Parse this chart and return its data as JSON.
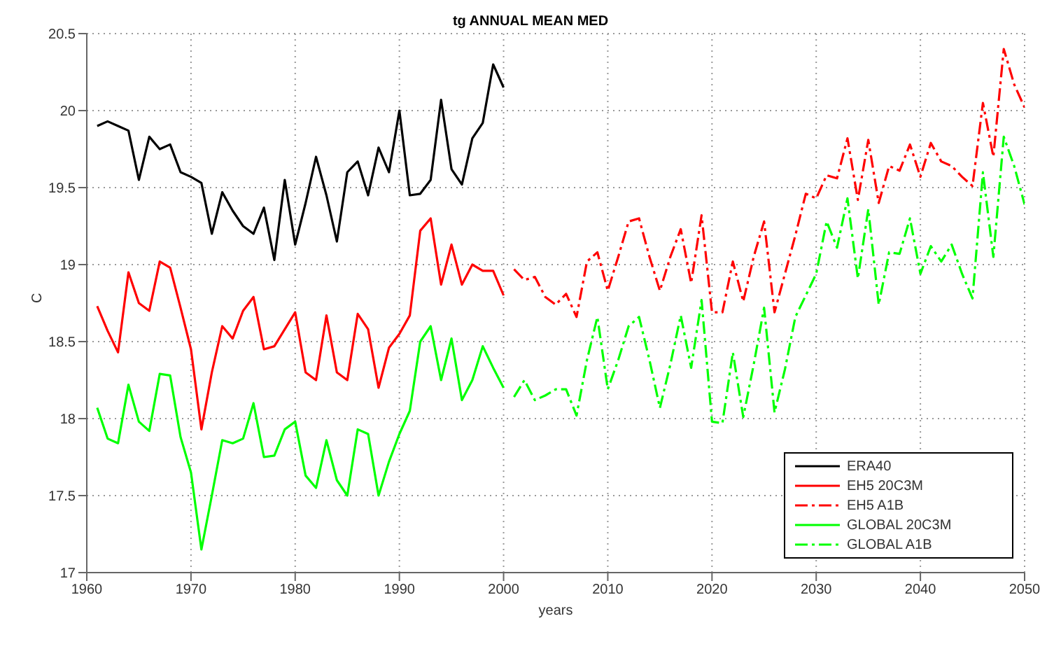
{
  "chart_data": {
    "type": "line",
    "title": "tg ANNUAL MEAN MED",
    "xlabel": "years",
    "ylabel": "C",
    "xlim": [
      1960,
      2050
    ],
    "xticks": [
      1960,
      1970,
      1980,
      1990,
      2000,
      2010,
      2020,
      2030,
      2040,
      2050
    ],
    "ylim": [
      17,
      20.5
    ],
    "yticks": [
      17,
      17.5,
      18,
      18.5,
      19,
      19.5,
      20,
      20.5
    ],
    "grid": true,
    "legend": "bottom right",
    "marker": "none",
    "series": [
      {
        "name": "ERA40",
        "color": "#000000",
        "line_style": "solid",
        "x": [
          1961,
          1962,
          1963,
          1964,
          1965,
          1966,
          1967,
          1968,
          1969,
          1970,
          1971,
          1972,
          1973,
          1974,
          1975,
          1976,
          1977,
          1978,
          1979,
          1980,
          1981,
          1982,
          1983,
          1984,
          1985,
          1986,
          1987,
          1988,
          1989,
          1990,
          1991,
          1992,
          1993,
          1994,
          1995,
          1996,
          1997,
          1998,
          1999,
          2000
        ],
        "values": [
          19.9,
          19.93,
          19.9,
          19.87,
          19.55,
          19.83,
          19.75,
          19.78,
          19.6,
          19.57,
          19.53,
          19.2,
          19.47,
          19.35,
          19.25,
          19.2,
          19.37,
          19.03,
          19.55,
          19.13,
          19.4,
          19.7,
          19.45,
          19.15,
          19.6,
          19.67,
          19.45,
          19.76,
          19.6,
          20.0,
          19.45,
          19.46,
          19.55,
          20.07,
          19.62,
          19.52,
          19.82,
          19.92,
          20.3,
          20.15
        ]
      },
      {
        "name": "EH5 20C3M",
        "color": "#ff0000",
        "line_style": "solid",
        "x": [
          1961,
          1962,
          1963,
          1964,
          1965,
          1966,
          1967,
          1968,
          1969,
          1970,
          1971,
          1972,
          1973,
          1974,
          1975,
          1976,
          1977,
          1978,
          1979,
          1980,
          1981,
          1982,
          1983,
          1984,
          1985,
          1986,
          1987,
          1988,
          1989,
          1990,
          1991,
          1992,
          1993,
          1994,
          1995,
          1996,
          1997,
          1998,
          1999,
          2000
        ],
        "values": [
          18.73,
          18.57,
          18.43,
          18.95,
          18.75,
          18.7,
          19.02,
          18.98,
          18.72,
          18.45,
          17.93,
          18.3,
          18.6,
          18.52,
          18.7,
          18.79,
          18.45,
          18.47,
          18.58,
          18.69,
          18.3,
          18.25,
          18.67,
          18.3,
          18.25,
          18.68,
          18.58,
          18.2,
          18.46,
          18.55,
          18.67,
          19.22,
          19.3,
          18.87,
          19.13,
          18.87,
          19.0,
          18.96,
          18.96,
          18.8
        ]
      },
      {
        "name": "EH5 A1B",
        "color": "#ff0000",
        "line_style": "dashed",
        "x": [
          2001,
          2002,
          2003,
          2004,
          2005,
          2006,
          2007,
          2008,
          2009,
          2010,
          2011,
          2012,
          2013,
          2014,
          2015,
          2016,
          2017,
          2018,
          2019,
          2020,
          2021,
          2022,
          2023,
          2024,
          2025,
          2026,
          2027,
          2028,
          2029,
          2030,
          2031,
          2032,
          2033,
          2034,
          2035,
          2036,
          2037,
          2038,
          2039,
          2040,
          2041,
          2042,
          2043,
          2044,
          2045,
          2046,
          2047,
          2048,
          2049,
          2050
        ],
        "values": [
          18.97,
          18.9,
          18.92,
          18.79,
          18.74,
          18.81,
          18.66,
          19.02,
          19.08,
          18.83,
          19.05,
          19.28,
          19.3,
          19.05,
          18.83,
          19.05,
          19.23,
          18.88,
          19.32,
          18.69,
          18.69,
          19.02,
          18.76,
          19.05,
          19.28,
          18.69,
          18.94,
          19.19,
          19.46,
          19.43,
          19.58,
          19.56,
          19.82,
          19.42,
          19.81,
          19.4,
          19.64,
          19.61,
          19.78,
          19.57,
          19.79,
          19.67,
          19.64,
          19.57,
          19.51,
          20.05,
          19.7,
          20.4,
          20.17,
          20.02
        ]
      },
      {
        "name": "GLOBAL 20C3M",
        "color": "#00ff00",
        "line_style": "solid",
        "x": [
          1961,
          1962,
          1963,
          1964,
          1965,
          1966,
          1967,
          1968,
          1969,
          1970,
          1971,
          1972,
          1973,
          1974,
          1975,
          1976,
          1977,
          1978,
          1979,
          1980,
          1981,
          1982,
          1983,
          1984,
          1985,
          1986,
          1987,
          1988,
          1989,
          1990,
          1991,
          1992,
          1993,
          1994,
          1995,
          1996,
          1997,
          1998,
          1999,
          2000
        ],
        "values": [
          18.07,
          17.87,
          17.84,
          18.22,
          17.98,
          17.92,
          18.29,
          18.28,
          17.88,
          17.65,
          17.15,
          17.5,
          17.86,
          17.84,
          17.87,
          18.1,
          17.75,
          17.76,
          17.93,
          17.98,
          17.63,
          17.55,
          17.86,
          17.6,
          17.5,
          17.93,
          17.9,
          17.5,
          17.72,
          17.9,
          18.05,
          18.5,
          18.6,
          18.25,
          18.52,
          18.12,
          18.25,
          18.47,
          18.33,
          18.2
        ]
      },
      {
        "name": "GLOBAL A1B",
        "color": "#00ff00",
        "line_style": "dashed",
        "x": [
          2001,
          2002,
          2003,
          2004,
          2005,
          2006,
          2007,
          2008,
          2009,
          2010,
          2011,
          2012,
          2013,
          2014,
          2015,
          2016,
          2017,
          2018,
          2019,
          2020,
          2021,
          2022,
          2023,
          2024,
          2025,
          2026,
          2027,
          2028,
          2029,
          2030,
          2031,
          2032,
          2033,
          2034,
          2035,
          2036,
          2037,
          2038,
          2039,
          2040,
          2041,
          2042,
          2043,
          2044,
          2045,
          2046,
          2047,
          2048,
          2049,
          2050
        ],
        "values": [
          18.14,
          18.25,
          18.12,
          18.15,
          18.19,
          18.19,
          18.02,
          18.38,
          18.66,
          18.19,
          18.38,
          18.6,
          18.66,
          18.38,
          18.07,
          18.35,
          18.67,
          18.33,
          18.77,
          17.98,
          17.97,
          18.43,
          18.01,
          18.35,
          18.72,
          18.04,
          18.32,
          18.66,
          18.8,
          18.94,
          19.28,
          19.11,
          19.43,
          18.91,
          19.36,
          18.74,
          19.08,
          19.07,
          19.3,
          18.94,
          19.12,
          19.02,
          19.13,
          18.94,
          18.78,
          19.6,
          19.05,
          19.83,
          19.64,
          19.39
        ]
      }
    ]
  }
}
